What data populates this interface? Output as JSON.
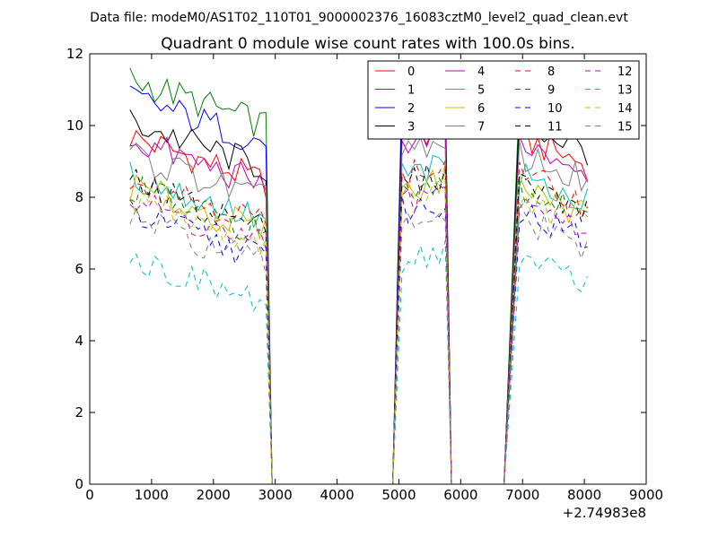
{
  "chart_data": {
    "type": "line",
    "suptitle": "Data file: modeM0/AS1T02_110T01_9000002376_16083cztM0_level2_quad_clean.evt",
    "title": "Quadrant 0 module wise count rates with 100.0s bins.",
    "xlabel": "",
    "ylabel": "",
    "xlim": [
      0,
      9000
    ],
    "ylim": [
      0,
      12
    ],
    "x_ticks": [
      "0",
      "1000",
      "2000",
      "3000",
      "4000",
      "5000",
      "6000",
      "7000",
      "8000",
      "9000"
    ],
    "y_ticks": [
      "0",
      "2",
      "4",
      "6",
      "8",
      "10",
      "12"
    ],
    "x_offset_label": "+2.74983e8",
    "grid": false,
    "legend_position": "top-right",
    "series": [
      {
        "name": "0",
        "color": "#ff0000",
        "dash": "solid",
        "base": 9.7
      },
      {
        "name": "1",
        "color": "#008000",
        "dash": "solid",
        "base": 11.3
      },
      {
        "name": "2",
        "color": "#0000ff",
        "dash": "solid",
        "base": 10.8
      },
      {
        "name": "3",
        "color": "#000000",
        "dash": "solid",
        "base": 10.1
      },
      {
        "name": "4",
        "color": "#bf00bf",
        "dash": "solid",
        "base": 9.6
      },
      {
        "name": "5",
        "color": "#00bfbf",
        "dash": "solid",
        "base": 8.6
      },
      {
        "name": "6",
        "color": "#bfbf00",
        "dash": "solid",
        "base": 8.3
      },
      {
        "name": "7",
        "color": "#808080",
        "dash": "solid",
        "base": 9.2
      },
      {
        "name": "8",
        "color": "#ff0000",
        "dash": "dashed",
        "base": 8.6
      },
      {
        "name": "9",
        "color": "#008000",
        "dash": "dashed",
        "base": 8.3
      },
      {
        "name": "10",
        "color": "#0000ff",
        "dash": "dashed",
        "base": 7.6
      },
      {
        "name": "11",
        "color": "#000000",
        "dash": "dashed",
        "base": 8.4
      },
      {
        "name": "12",
        "color": "#bf00bf",
        "dash": "dashed",
        "base": 7.9
      },
      {
        "name": "13",
        "color": "#00bfbf",
        "dash": "dashed",
        "base": 6.3
      },
      {
        "name": "14",
        "color": "#bfbf00",
        "dash": "dashed",
        "base": 8.0
      },
      {
        "name": "15",
        "color": "#808080",
        "dash": "dashed",
        "base": 7.4
      }
    ],
    "segments": [
      {
        "x_start": 650,
        "x_end": 2850,
        "drift": -1.3
      },
      {
        "x_start": 5050,
        "x_end": 5750,
        "drift": 0.2
      },
      {
        "x_start": 6950,
        "x_end": 8050,
        "drift": -0.8
      }
    ],
    "zero_intervals": [
      {
        "x_start": 3000,
        "x_end": 4900
      },
      {
        "x_start": 5850,
        "x_end": 6700
      }
    ],
    "transitions": [
      {
        "from": 2850,
        "fall_to": 2950
      },
      {
        "rise_from": 4900,
        "to": 5050
      },
      {
        "from": 5750,
        "fall_to": 5850
      },
      {
        "rise_from": 6700,
        "to": 6950
      }
    ]
  }
}
